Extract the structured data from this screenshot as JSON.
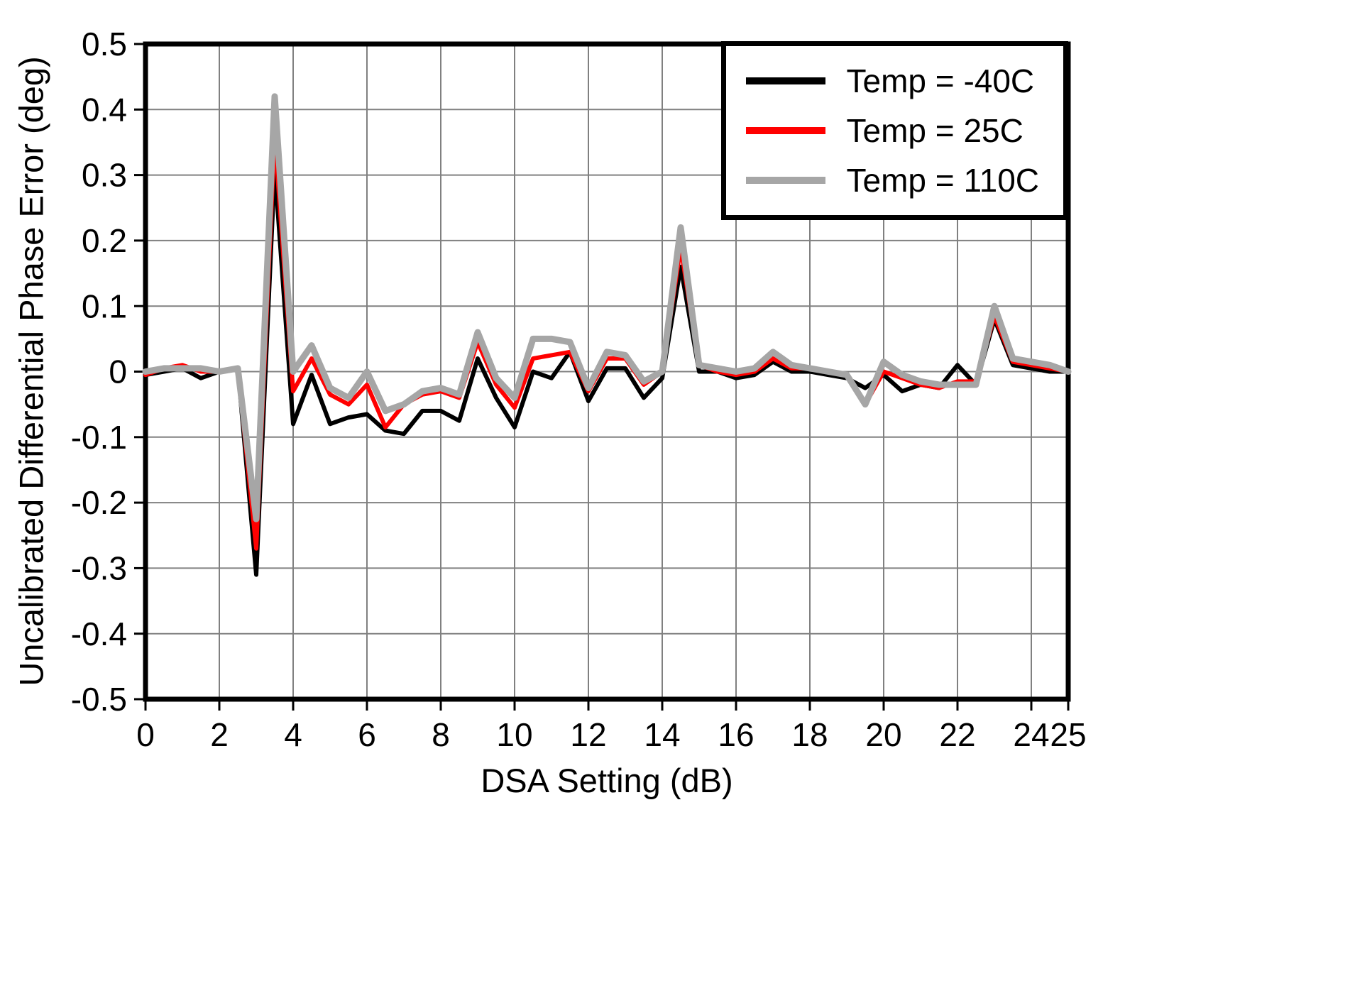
{
  "figure": {
    "background": "#ffffff",
    "frame_color": "#000000"
  },
  "chart_data": {
    "type": "line",
    "title": "",
    "xlabel": "DSA Setting (dB)",
    "ylabel": "Uncalibrated Differential Phase Error (deg)",
    "xlim": [
      0,
      25
    ],
    "ylim": [
      -0.5,
      0.5
    ],
    "xticks": [
      0,
      2,
      4,
      6,
      8,
      10,
      12,
      14,
      16,
      18,
      20,
      22,
      24,
      25
    ],
    "yticks": [
      0.5,
      0.4,
      0.3,
      0.2,
      0.1,
      0,
      -0.1,
      -0.2,
      -0.3,
      -0.4,
      -0.5
    ],
    "grid": {
      "on": true,
      "color": "#808080"
    },
    "legend_position": "top-right",
    "x": [
      0,
      0.5,
      1,
      1.5,
      2,
      2.5,
      3,
      3.5,
      4,
      4.5,
      5,
      5.5,
      6,
      6.5,
      7,
      7.5,
      8,
      8.5,
      9,
      9.5,
      10,
      10.5,
      11,
      11.5,
      12,
      12.5,
      13,
      13.5,
      14,
      14.5,
      15,
      15.5,
      16,
      16.5,
      17,
      17.5,
      18,
      18.5,
      19,
      19.5,
      20,
      20.5,
      21,
      21.5,
      22,
      22.5,
      23,
      23.5,
      24,
      24.5,
      25
    ],
    "series": [
      {
        "name": "Temp = -40C",
        "color": "#000000",
        "values": [
          -0.005,
          0,
          0.005,
          -0.01,
          0,
          0.005,
          -0.31,
          0.31,
          -0.08,
          -0.005,
          -0.08,
          -0.07,
          -0.065,
          -0.09,
          -0.095,
          -0.06,
          -0.06,
          -0.075,
          0.02,
          -0.04,
          -0.085,
          0,
          -0.01,
          0.03,
          -0.045,
          0.005,
          0.005,
          -0.04,
          -0.01,
          0.16,
          0,
          0,
          -0.01,
          -0.005,
          0.015,
          0,
          0,
          -0.005,
          -0.01,
          -0.025,
          -0.005,
          -0.03,
          -0.02,
          -0.025,
          0.01,
          -0.02,
          0.08,
          0.01,
          0.005,
          0,
          0
        ]
      },
      {
        "name": "Temp = 25C",
        "color": "#ff0000",
        "values": [
          -0.005,
          0.005,
          0.01,
          0,
          0,
          0.005,
          -0.27,
          0.36,
          -0.03,
          0.02,
          -0.035,
          -0.05,
          -0.02,
          -0.085,
          -0.05,
          -0.035,
          -0.03,
          -0.04,
          0.045,
          -0.02,
          -0.055,
          0.02,
          0.025,
          0.03,
          -0.03,
          0.02,
          0.02,
          -0.02,
          0,
          0.19,
          0.01,
          0,
          -0.005,
          0,
          0.02,
          0.005,
          0.005,
          0,
          -0.005,
          -0.05,
          0,
          -0.01,
          -0.02,
          -0.025,
          -0.015,
          -0.015,
          0.085,
          0.015,
          0.01,
          0.005,
          0
        ]
      },
      {
        "name": "Temp = 110C",
        "color": "#a6a6a6",
        "values": [
          0,
          0.005,
          0.005,
          0.005,
          0,
          0.005,
          -0.225,
          0.42,
          0,
          0.04,
          -0.025,
          -0.04,
          0,
          -0.06,
          -0.05,
          -0.03,
          -0.025,
          -0.035,
          0.06,
          -0.01,
          -0.04,
          0.05,
          0.05,
          0.045,
          -0.025,
          0.03,
          0.025,
          -0.015,
          0,
          0.22,
          0.01,
          0.005,
          0,
          0.005,
          0.03,
          0.01,
          0.005,
          0,
          -0.005,
          -0.05,
          0.015,
          -0.005,
          -0.015,
          -0.02,
          -0.02,
          -0.02,
          0.1,
          0.02,
          0.015,
          0.01,
          0
        ]
      }
    ]
  }
}
